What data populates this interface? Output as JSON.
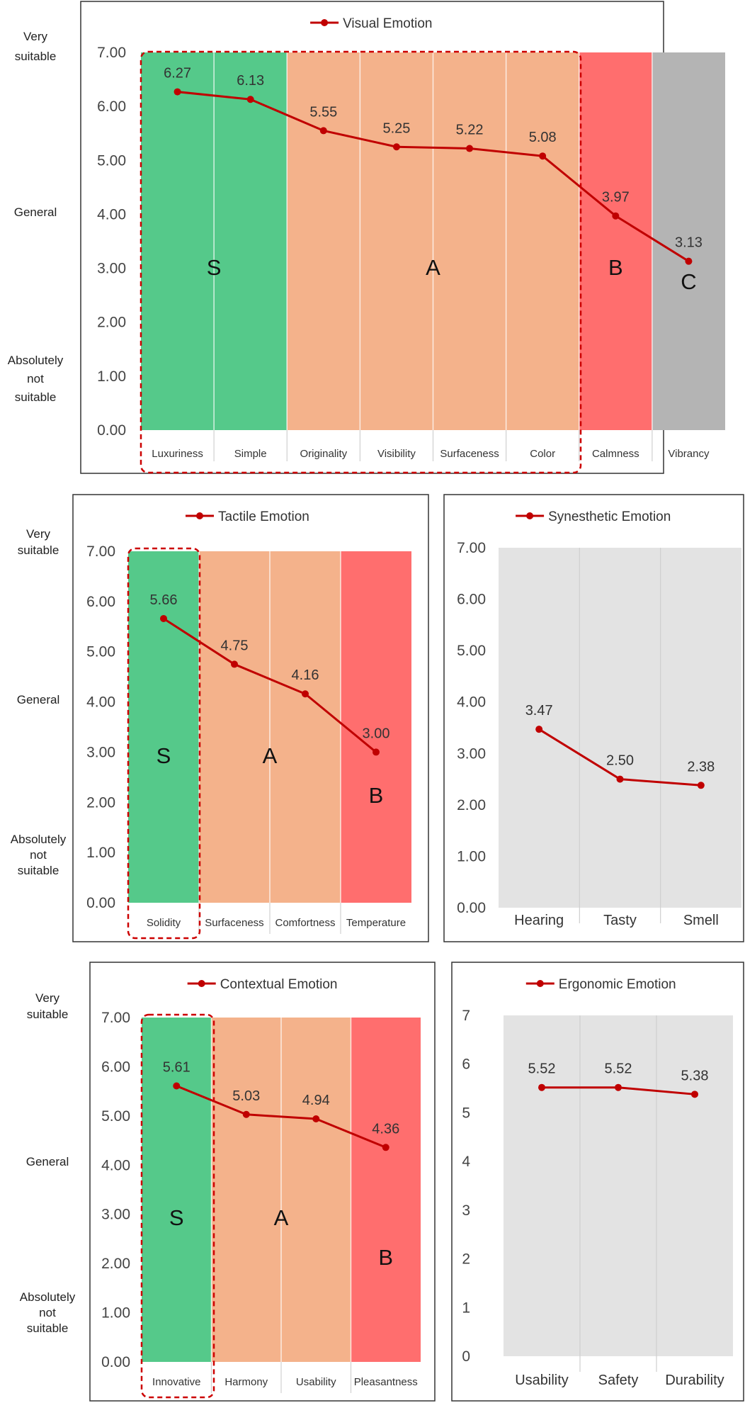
{
  "colors": {
    "line": "#c00000",
    "band_S": "#55c98a",
    "band_A": "#f4b28b",
    "band_B": "#ff6e6e",
    "band_C": "#b4b4b4",
    "plot_bg": "#e3e3e3",
    "frame": "#333333",
    "axis_text": "#444444",
    "dashed": "#cc0000"
  },
  "chart_data": [
    {
      "type": "line",
      "panel": "visual",
      "title": "Visual Emotion",
      "categories": [
        "Luxuriness",
        "Simple",
        "Originality",
        "Visibility",
        "Surfaceness",
        "Color",
        "Calmness",
        "Vibrancy"
      ],
      "series": [
        {
          "name": "Visual Emotion",
          "values": [
            6.27,
            6.13,
            5.55,
            5.25,
            5.22,
            5.08,
            3.97,
            3.13
          ]
        }
      ],
      "value_labels": [
        "6.27",
        "6.13",
        "5.55",
        "5.25",
        "5.22",
        "5.08",
        "3.97",
        "3.13"
      ],
      "yticks": [
        "0.00",
        "1.00",
        "2.00",
        "3.00",
        "4.00",
        "5.00",
        "6.00",
        "7.00"
      ],
      "ylim": [
        0,
        7
      ],
      "ylabels": {
        "top": "Very suitable",
        "middle": "General",
        "bottom": "Absolutely not suitable"
      },
      "bands": [
        {
          "grade": "S",
          "categories": [
            "Luxuriness",
            "Simple"
          ]
        },
        {
          "grade": "A",
          "categories": [
            "Originality",
            "Visibility",
            "Surfaceness",
            "Color"
          ]
        },
        {
          "grade": "B",
          "categories": [
            "Calmness"
          ]
        },
        {
          "grade": "C",
          "categories": [
            "Vibrancy"
          ]
        }
      ],
      "highlight": [
        "Luxuriness",
        "Color"
      ],
      "grid": false,
      "legend": "top"
    },
    {
      "type": "line",
      "panel": "tactile",
      "title": "Tactile Emotion",
      "categories": [
        "Solidity",
        "Surfaceness",
        "Comfortness",
        "Temperature"
      ],
      "series": [
        {
          "name": "Tactile Emotion",
          "values": [
            5.66,
            4.75,
            4.16,
            3.0
          ]
        }
      ],
      "value_labels": [
        "5.66",
        "4.75",
        "4.16",
        "3.00"
      ],
      "yticks": [
        "0.00",
        "1.00",
        "2.00",
        "3.00",
        "4.00",
        "5.00",
        "6.00",
        "7.00"
      ],
      "ylim": [
        0,
        7
      ],
      "ylabels": {
        "top": "Very suitable",
        "middle": "General",
        "bottom": "Absolutely not suitable"
      },
      "bands": [
        {
          "grade": "S",
          "categories": [
            "Solidity"
          ]
        },
        {
          "grade": "A",
          "categories": [
            "Surfaceness",
            "Comfortness"
          ]
        },
        {
          "grade": "B",
          "categories": [
            "Temperature"
          ]
        }
      ],
      "highlight": [
        "Solidity",
        "Solidity"
      ],
      "grid": false,
      "legend": "top"
    },
    {
      "type": "line",
      "panel": "synesthetic",
      "title": "Synesthetic Emotion",
      "categories": [
        "Hearing",
        "Tasty",
        "Smell"
      ],
      "series": [
        {
          "name": "Synesthetic Emotion",
          "values": [
            3.47,
            2.5,
            2.38
          ]
        }
      ],
      "value_labels": [
        "3.47",
        "2.50",
        "2.38"
      ],
      "yticks": [
        "0.00",
        "1.00",
        "2.00",
        "3.00",
        "4.00",
        "5.00",
        "6.00",
        "7.00"
      ],
      "ylim": [
        0,
        7
      ],
      "grid": false,
      "legend": "top"
    },
    {
      "type": "line",
      "panel": "contextual",
      "title": "Contextual Emotion",
      "categories": [
        "Innovative",
        "Harmony",
        "Usability",
        "Pleasantness"
      ],
      "series": [
        {
          "name": "Contextual Emotion",
          "values": [
            5.61,
            5.03,
            4.94,
            4.36
          ]
        }
      ],
      "value_labels": [
        "5.61",
        "5.03",
        "4.94",
        "4.36"
      ],
      "yticks": [
        "0.00",
        "1.00",
        "2.00",
        "3.00",
        "4.00",
        "5.00",
        "6.00",
        "7.00"
      ],
      "ylim": [
        0,
        7
      ],
      "ylabels": {
        "top": "Very suitable",
        "middle": "General",
        "bottom": "Absolutely not suitable"
      },
      "bands": [
        {
          "grade": "S",
          "categories": [
            "Innovative"
          ]
        },
        {
          "grade": "A",
          "categories": [
            "Harmony",
            "Usability"
          ]
        },
        {
          "grade": "B",
          "categories": [
            "Pleasantness"
          ]
        }
      ],
      "highlight": [
        "Innovative",
        "Innovative"
      ],
      "grid": false,
      "legend": "top"
    },
    {
      "type": "line",
      "panel": "ergonomic",
      "title": "Ergonomic Emotion",
      "categories": [
        "Usability",
        "Safety",
        "Durability"
      ],
      "series": [
        {
          "name": "Ergonomic Emotion",
          "values": [
            5.52,
            5.52,
            5.38
          ]
        }
      ],
      "value_labels": [
        "5.52",
        "5.52",
        "5.38"
      ],
      "yticks": [
        "0",
        "1",
        "2",
        "3",
        "4",
        "5",
        "6",
        "7"
      ],
      "ylim": [
        0,
        7
      ],
      "grid": false,
      "legend": "top"
    }
  ]
}
